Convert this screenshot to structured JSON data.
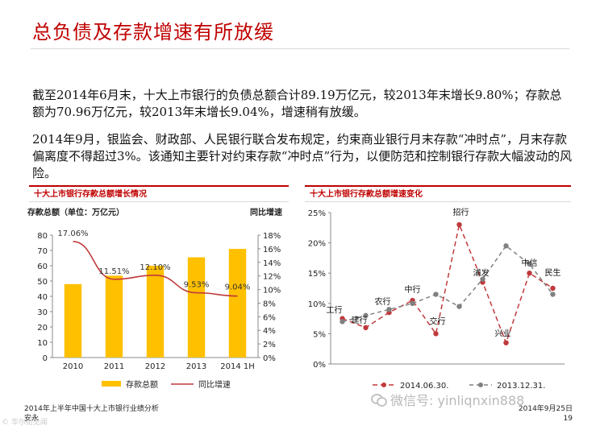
{
  "title": "总负债及存款增速有所放缓",
  "paragraph1": "截至2014年6月末，十大上市银行的负债总额合计89.19万亿元，较2013年末增长9.80%；存款总额为70.96万亿元，较2013年末增长9.04%，增速稍有放缓。",
  "paragraph2": "2014年9月，银监会、财政部、人民银行联合发布规定，约束商业银行月末存款“冲时点”，月末存款偏离度不得超过3%。该通知主要针对约束存款“冲时点”行为，以便防范和控制银行存款大幅波动的风险。",
  "footer": {
    "left_line1": "2014年上半年中国十大上市银行业绩分析",
    "left_line2": "安永",
    "right_line1": "2014年9月25日",
    "page": "19"
  },
  "watermark": "微信号: yinliqnxin888",
  "bottom_logo": "© 华尔街见闻",
  "colors": {
    "accent": "#c00000",
    "bar": "#ffc000",
    "line": "#c0393b",
    "gray": "#808080"
  },
  "chart_data": [
    {
      "type": "bar",
      "title": "十大上市银行存款总额增长情况",
      "ylabel": "存款总额（单位：万亿元）",
      "y2label": "同比增速",
      "categories": [
        "2010",
        "2011",
        "2012",
        "2013",
        "2014 1H"
      ],
      "ylim": [
        0,
        80
      ],
      "yticks": [
        "0",
        "10",
        "20",
        "30",
        "40",
        "50",
        "60",
        "70",
        "80"
      ],
      "y2lim": [
        0,
        18
      ],
      "y2ticks": [
        "0%",
        "2%",
        "4%",
        "6%",
        "8%",
        "10%",
        "12%",
        "14%",
        "16%",
        "18%"
      ],
      "series": [
        {
          "name": "存款总额",
          "kind": "bar",
          "values": [
            48,
            53.5,
            60,
            65.5,
            71
          ]
        },
        {
          "name": "同比增速",
          "kind": "line",
          "values": [
            17.06,
            11.51,
            12.1,
            9.53,
            9.04
          ],
          "labels": [
            "17.06%",
            "11.51%",
            "12.10%",
            "9.53%",
            "9.04%"
          ]
        }
      ],
      "legend": "bottom"
    },
    {
      "type": "line",
      "title": "十大上市银行存款总额增速变化",
      "ylim": [
        0,
        25
      ],
      "yticks": [
        "0%",
        "5%",
        "10%",
        "15%",
        "20%",
        "25%"
      ],
      "categories": [
        "工行",
        "建行",
        "农行",
        "中行",
        "交行",
        "招行",
        "浦发",
        "兴业",
        "中信",
        "民生"
      ],
      "series": [
        {
          "name": "2014.06.30.",
          "values": [
            7.5,
            6,
            8.5,
            10.5,
            5,
            23,
            13.5,
            3.5,
            15,
            12.5
          ]
        },
        {
          "name": "2013.12.31.",
          "values": [
            7,
            8,
            9,
            10,
            11.5,
            9.5,
            14,
            19.5,
            16.5,
            11.5
          ]
        }
      ],
      "legend": "bottom"
    }
  ]
}
